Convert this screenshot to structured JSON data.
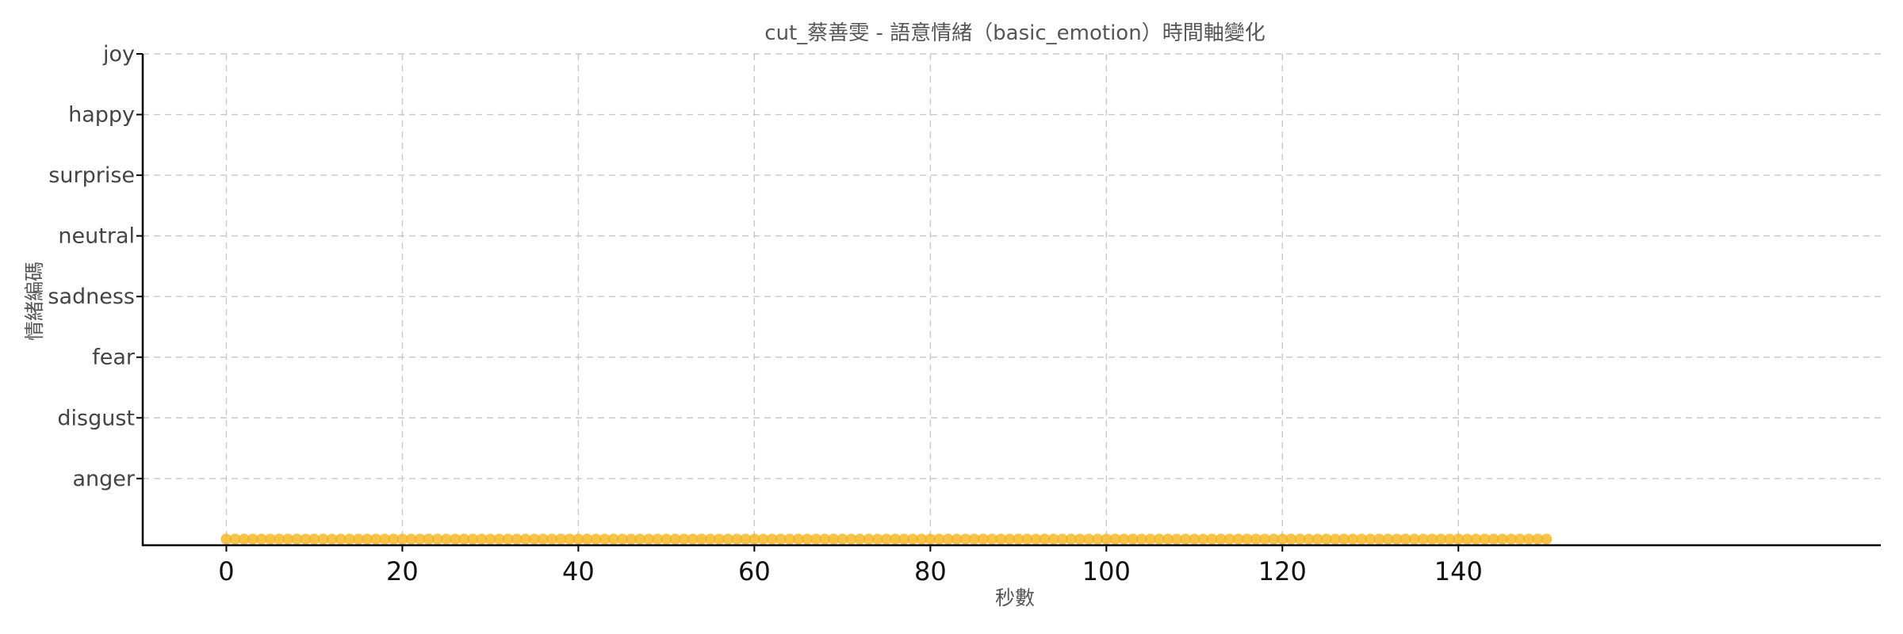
{
  "chart_data": {
    "type": "scatter",
    "title": "cut_蔡善雯 - 語意情緒（basic_emotion）時間軸變化",
    "xlabel": "秒數",
    "ylabel": "情緒編碼",
    "xlim": [
      -9.5,
      188
    ],
    "ylim": [
      -0.1,
      8.0
    ],
    "x_ticks": [
      0,
      20,
      40,
      60,
      80,
      100,
      120,
      140
    ],
    "y_tick_values": [
      1,
      2,
      3,
      4,
      5,
      6,
      7,
      8
    ],
    "y_tick_labels": [
      "anger",
      "disgust",
      "fear",
      "sadness",
      "neutral",
      "surprise",
      "happy",
      "joy"
    ],
    "grid": true,
    "marker_color": "#f5b41a",
    "series": [
      {
        "x_start": 0,
        "x_end": 150,
        "x_step": 1,
        "y": 0
      }
    ]
  }
}
